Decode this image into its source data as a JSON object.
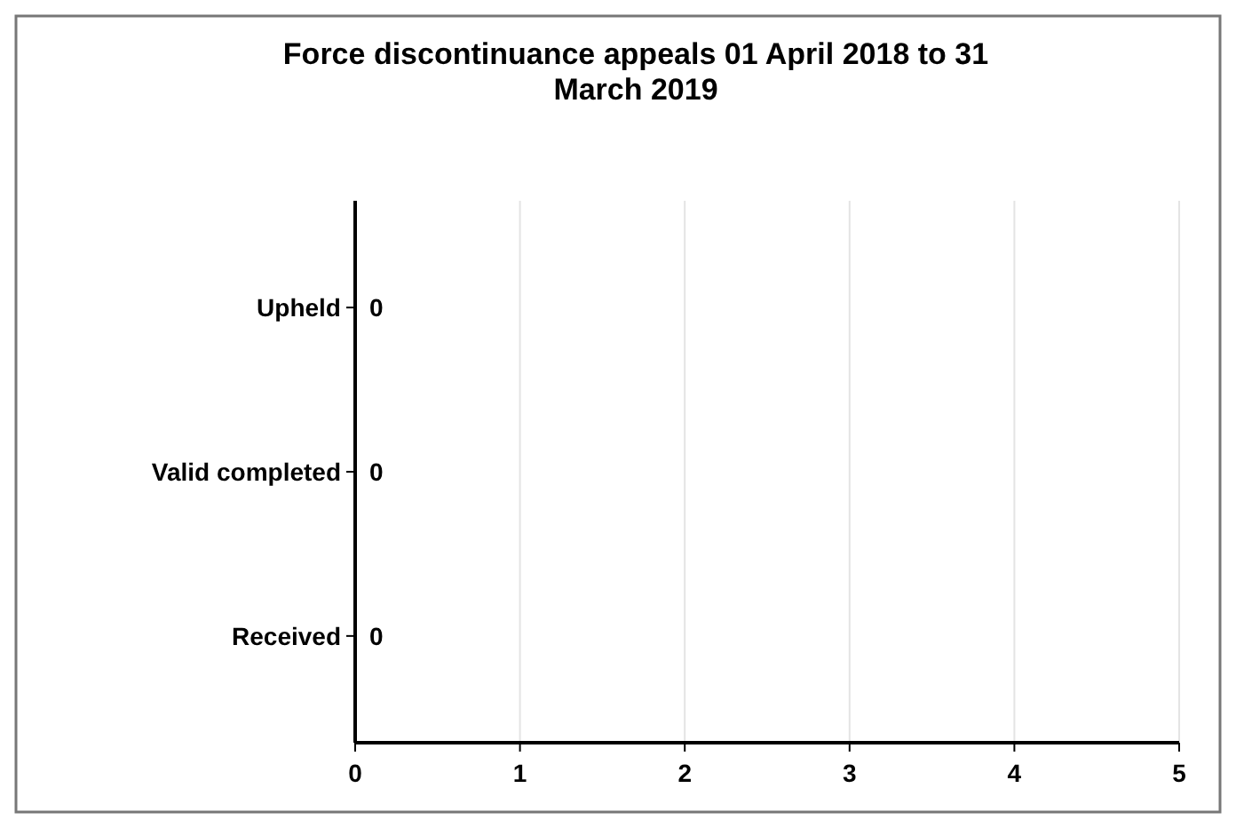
{
  "chart_data": {
    "type": "bar",
    "orientation": "horizontal",
    "title": "Force discontinuance appeals 01 April 2018 to 31 March 2019",
    "categories": [
      "Upheld",
      "Valid completed",
      "Received"
    ],
    "values": [
      0,
      0,
      0
    ],
    "data_labels": true,
    "xlim": [
      0,
      5
    ],
    "xticks": [
      0,
      1,
      2,
      3,
      4,
      5
    ],
    "grid": "x"
  }
}
